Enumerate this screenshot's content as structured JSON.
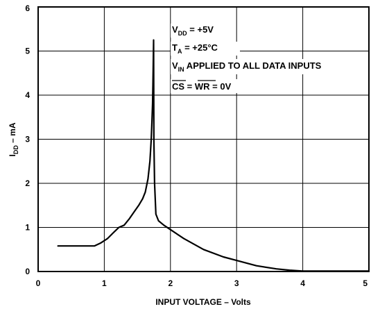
{
  "chart_data": {
    "type": "line",
    "xlabel": "INPUT VOLTAGE – Volts",
    "ylabel_main": "I",
    "ylabel_sub": "DD",
    "ylabel_rest": " – mA",
    "xlim": [
      0,
      5
    ],
    "ylim": [
      0,
      6
    ],
    "xticks": [
      "0",
      "1",
      "2",
      "3",
      "4",
      "5"
    ],
    "yticks": [
      "0",
      "1",
      "2",
      "3",
      "4",
      "5",
      "6"
    ],
    "grid": true,
    "annotations": {
      "vdd_main": "V",
      "vdd_sub": "DD",
      "vdd_rest": " = +5V",
      "ta_main": "T",
      "ta_sub": "A",
      "ta_rest": " = +25°C",
      "vin_main": "V",
      "vin_sub": "IN",
      "vin_rest": " APPLIED TO ALL DATA INPUTS",
      "cs": "CS",
      "eq1": " = ",
      "wr": "WR",
      "eq2": " = 0V"
    },
    "series": [
      {
        "x": [
          0.3,
          0.85,
          0.95,
          1.05,
          1.15,
          1.22,
          1.3,
          1.38,
          1.45,
          1.52,
          1.58,
          1.62,
          1.66,
          1.69,
          1.71,
          1.72,
          1.73,
          1.735,
          1.74,
          1.745,
          1.75,
          1.76,
          1.78,
          1.82,
          1.9,
          2.0,
          2.2,
          2.5,
          2.8,
          3.0,
          3.3,
          3.6,
          3.8,
          4.0,
          4.3,
          5.0
        ],
        "y": [
          0.58,
          0.58,
          0.65,
          0.75,
          0.9,
          1.0,
          1.05,
          1.2,
          1.35,
          1.5,
          1.65,
          1.8,
          2.1,
          2.5,
          3.0,
          3.4,
          3.8,
          4.2,
          4.7,
          5.25,
          3.0,
          2.0,
          1.3,
          1.15,
          1.05,
          0.95,
          0.75,
          0.5,
          0.33,
          0.25,
          0.13,
          0.06,
          0.03,
          0.01,
          0.01,
          0.01
        ]
      }
    ]
  }
}
